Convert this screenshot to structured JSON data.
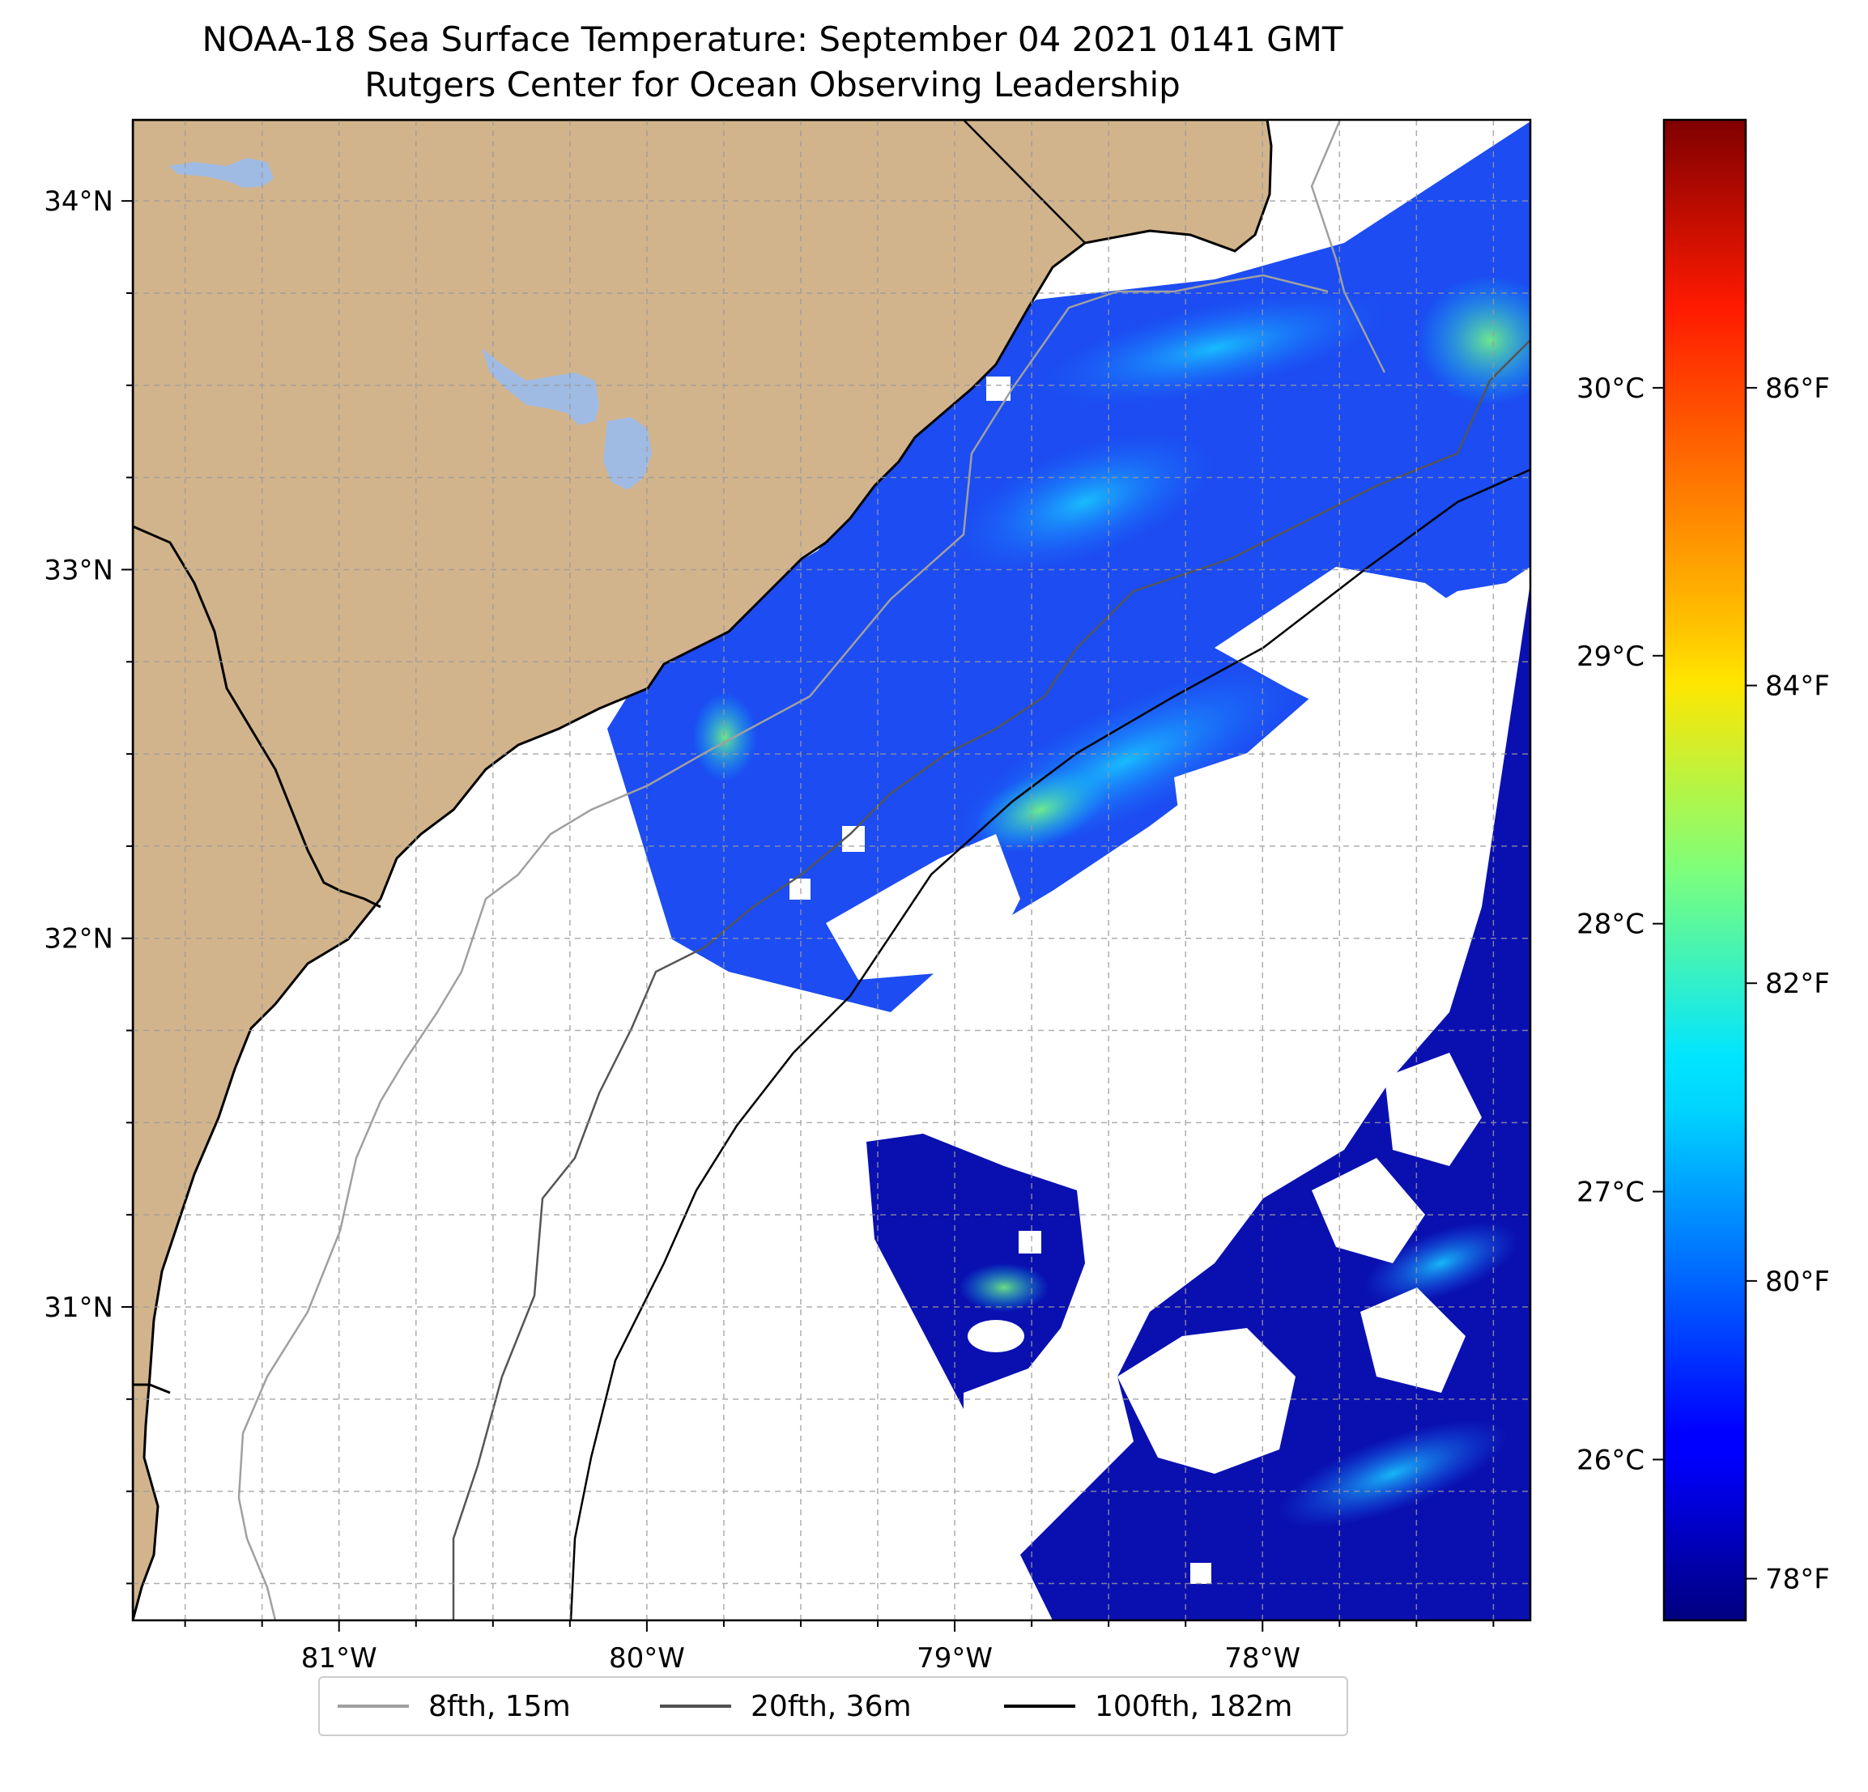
{
  "title": {
    "line1": "NOAA-18 Sea Surface Temperature: September 04 2021 0141 GMT",
    "line2": "Rutgers Center for Ocean Observing Leadership"
  },
  "colors": {
    "land": "#d2b48c",
    "lakes": "#9fbbe3",
    "no_data": "#ffffff",
    "coastline": "#000000",
    "grid": "#9a9a9a"
  },
  "chart_data": {
    "type": "heatmap",
    "x_axis": {
      "ticks": [
        "81°W",
        "80°W",
        "79°W",
        "78°W"
      ],
      "tick_values": [
        -81,
        -80,
        -79,
        -78
      ],
      "range": [
        -81.67,
        -77.13
      ]
    },
    "y_axis": {
      "ticks": [
        "34°N",
        "33°N",
        "32°N",
        "31°N"
      ],
      "tick_values": [
        34,
        33,
        32,
        31
      ],
      "range": [
        30.15,
        34.22
      ]
    },
    "grid": true,
    "colorbar": {
      "colormap": "jet",
      "range_c": [
        25.4,
        31.0
      ],
      "celsius_ticks": [
        "26°C",
        "27°C",
        "28°C",
        "29°C",
        "30°C"
      ],
      "celsius_values": [
        26,
        27,
        28,
        29,
        30
      ],
      "fahrenheit_ticks": [
        "78°F",
        "80°F",
        "82°F",
        "84°F",
        "86°F"
      ],
      "fahrenheit_values": [
        78,
        80,
        82,
        84,
        86
      ]
    },
    "legend": {
      "placement": "bottom-center",
      "entries": [
        {
          "label": "8fth, 15m",
          "color": "#a0a0a0"
        },
        {
          "label": "20fth, 36m",
          "color": "#505050"
        },
        {
          "label": "100fth, 182m",
          "color": "#000000"
        }
      ]
    }
  }
}
